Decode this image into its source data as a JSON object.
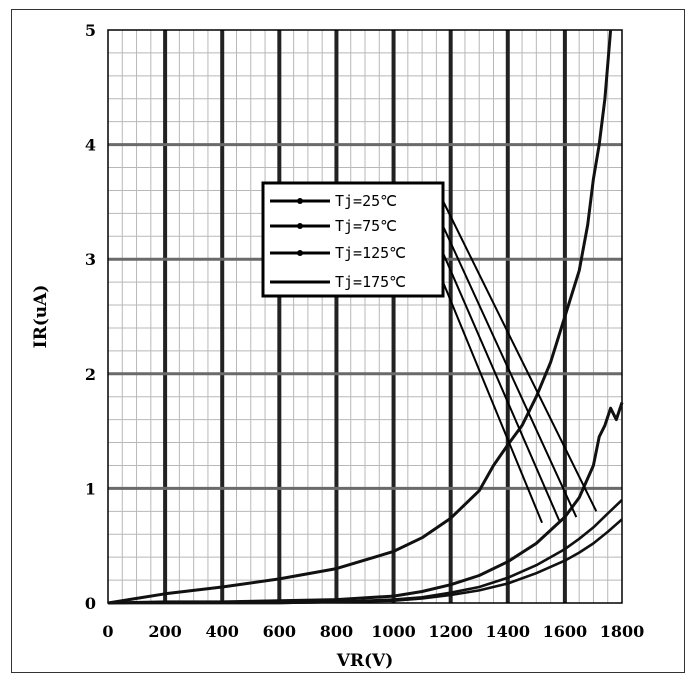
{
  "chart_data": {
    "type": "line",
    "xlabel": "VR(V)",
    "ylabel": "IR(uA)",
    "xlim": [
      0,
      1800
    ],
    "ylim": [
      0,
      5
    ],
    "x_ticks": [
      "0",
      "200",
      "400",
      "600",
      "800",
      "1000",
      "1200",
      "1400",
      "1600",
      "1800"
    ],
    "y_ticks": [
      "0",
      "1",
      "2",
      "3",
      "4",
      "5"
    ],
    "grid": true,
    "legend_position": "center-left",
    "series": [
      {
        "name": "Tj=25℃",
        "x": [
          0,
          200,
          400,
          600,
          800,
          1000,
          1100,
          1200,
          1300,
          1400,
          1500,
          1600,
          1650,
          1700,
          1750,
          1800
        ],
        "y": [
          0,
          0.0,
          0.0,
          0.0,
          0.01,
          0.02,
          0.04,
          0.07,
          0.11,
          0.17,
          0.26,
          0.37,
          0.44,
          0.52,
          0.62,
          0.73
        ]
      },
      {
        "name": "Tj=75℃",
        "x": [
          0,
          200,
          400,
          600,
          800,
          1000,
          1100,
          1200,
          1300,
          1400,
          1500,
          1600,
          1650,
          1700,
          1750,
          1800
        ],
        "y": [
          0,
          0.0,
          0.0,
          0.0,
          0.01,
          0.03,
          0.05,
          0.09,
          0.14,
          0.22,
          0.33,
          0.47,
          0.56,
          0.66,
          0.78,
          0.9
        ]
      },
      {
        "name": "Tj=125℃",
        "x": [
          0,
          200,
          400,
          600,
          800,
          1000,
          1100,
          1200,
          1300,
          1400,
          1500,
          1600,
          1650,
          1700,
          1720,
          1740,
          1760,
          1780,
          1800
        ],
        "y": [
          0,
          0.01,
          0.01,
          0.02,
          0.03,
          0.06,
          0.1,
          0.16,
          0.24,
          0.36,
          0.52,
          0.75,
          0.92,
          1.2,
          1.45,
          1.55,
          1.7,
          1.6,
          1.75
        ]
      },
      {
        "name": "Tj=175℃",
        "x": [
          0,
          200,
          400,
          600,
          800,
          1000,
          1100,
          1200,
          1300,
          1350,
          1400,
          1450,
          1500,
          1550,
          1600,
          1650,
          1680,
          1700,
          1720,
          1740,
          1760
        ],
        "y": [
          0,
          0.08,
          0.14,
          0.21,
          0.3,
          0.45,
          0.57,
          0.74,
          0.98,
          1.2,
          1.38,
          1.55,
          1.8,
          2.1,
          2.5,
          2.9,
          3.3,
          3.7,
          4.0,
          4.4,
          5.0
        ]
      }
    ]
  }
}
